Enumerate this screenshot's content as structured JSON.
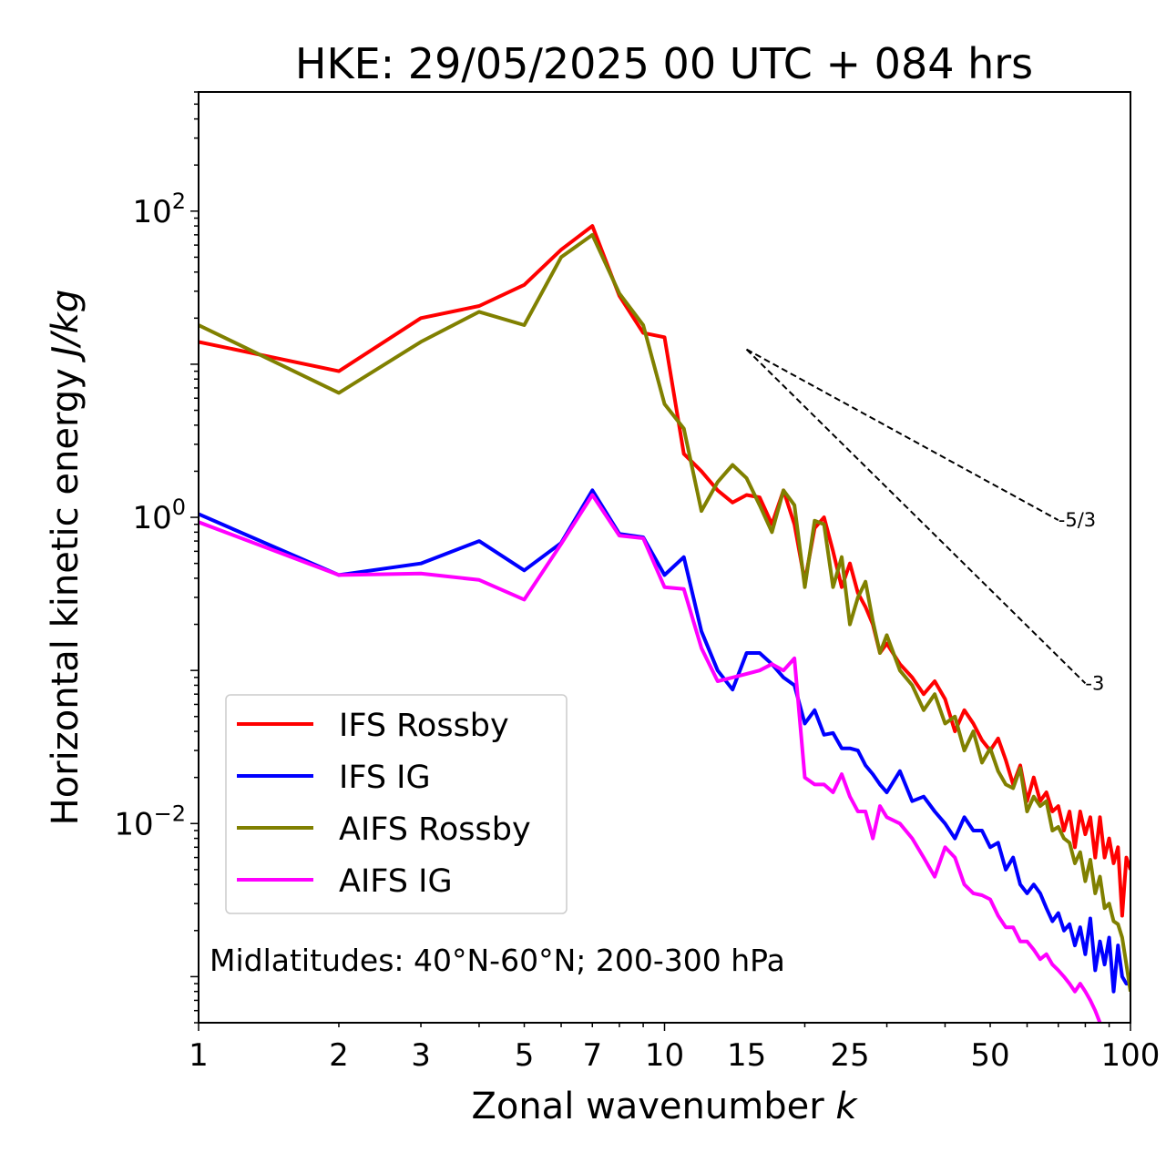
{
  "chart_data": {
    "type": "line",
    "title": "HKE: 29/05/2025 00 UTC + 084 hrs",
    "xlabel": "Zonal wavenumber",
    "xlabel_var": "k",
    "ylabel": "Horizontal kinetic energy",
    "ylabel_units": "J/kg",
    "xscale": "log",
    "yscale": "log",
    "xlim": [
      1,
      100
    ],
    "ylim": [
      0.0005,
      600
    ],
    "x_ticks": [
      1,
      2,
      3,
      5,
      7,
      10,
      15,
      25,
      50,
      100
    ],
    "y_ticks": [
      {
        "value": 0.01,
        "base": "10",
        "exp": "−2"
      },
      {
        "value": 1,
        "base": "10",
        "exp": "0"
      },
      {
        "value": 100,
        "base": "10",
        "exp": "2"
      }
    ],
    "grid": false,
    "legend_position": "lower-left",
    "annotation": "Midlatitudes: 40°N-60°N; 200-300 hPa",
    "reference_slopes": [
      {
        "label": "-5/3",
        "exponent": -1.6667,
        "x_start": 15,
        "y_start": 12.5,
        "x_end": 70
      },
      {
        "label": "-3",
        "exponent": -3,
        "x_start": 15,
        "y_start": 12.5,
        "x_end": 80
      }
    ],
    "series": [
      {
        "name": "IFS Rossby",
        "color": "#ff0000",
        "x": [
          1,
          2,
          3,
          4,
          5,
          6,
          7,
          8,
          9,
          10,
          11,
          12,
          13,
          14,
          15,
          16,
          17,
          18,
          19,
          20,
          21,
          22,
          23,
          24,
          25,
          26,
          27,
          28,
          29,
          30,
          32,
          34,
          36,
          38,
          40,
          42,
          44,
          46,
          48,
          50,
          52,
          54,
          56,
          58,
          60,
          62,
          64,
          66,
          68,
          70,
          72,
          74,
          76,
          78,
          80,
          82,
          84,
          86,
          88,
          90,
          92,
          94,
          96,
          98,
          100
        ],
        "values": [
          14,
          9,
          20,
          24,
          33,
          56,
          80,
          28,
          16,
          15,
          2.6,
          2.0,
          1.5,
          1.25,
          1.4,
          1.35,
          0.9,
          1.5,
          0.9,
          0.38,
          0.85,
          1.0,
          0.6,
          0.35,
          0.5,
          0.32,
          0.26,
          0.2,
          0.13,
          0.15,
          0.11,
          0.09,
          0.07,
          0.085,
          0.065,
          0.04,
          0.055,
          0.045,
          0.035,
          0.03,
          0.036,
          0.026,
          0.018,
          0.024,
          0.014,
          0.02,
          0.014,
          0.016,
          0.012,
          0.013,
          0.009,
          0.012,
          0.007,
          0.012,
          0.0085,
          0.011,
          0.006,
          0.011,
          0.006,
          0.008,
          0.0055,
          0.007,
          0.0025,
          0.006,
          0.005
        ]
      },
      {
        "name": "IFS IG",
        "color": "#0000ff",
        "x": [
          1,
          2,
          3,
          4,
          5,
          6,
          7,
          8,
          9,
          10,
          11,
          12,
          13,
          14,
          15,
          16,
          17,
          18,
          19,
          20,
          21,
          22,
          23,
          24,
          25,
          26,
          27,
          28,
          29,
          30,
          32,
          34,
          36,
          38,
          40,
          42,
          44,
          46,
          48,
          50,
          52,
          54,
          56,
          58,
          60,
          62,
          64,
          66,
          68,
          70,
          72,
          74,
          76,
          78,
          80,
          82,
          84,
          86,
          88,
          90,
          92,
          94,
          96,
          98,
          100
        ],
        "values": [
          1.05,
          0.42,
          0.5,
          0.7,
          0.45,
          0.68,
          1.5,
          0.78,
          0.74,
          0.42,
          0.55,
          0.18,
          0.1,
          0.075,
          0.13,
          0.13,
          0.11,
          0.09,
          0.08,
          0.045,
          0.055,
          0.038,
          0.039,
          0.031,
          0.031,
          0.03,
          0.024,
          0.021,
          0.018,
          0.016,
          0.022,
          0.014,
          0.015,
          0.012,
          0.01,
          0.008,
          0.011,
          0.009,
          0.009,
          0.007,
          0.0075,
          0.005,
          0.006,
          0.004,
          0.0035,
          0.004,
          0.0035,
          0.0028,
          0.0023,
          0.0026,
          0.002,
          0.0022,
          0.0016,
          0.0021,
          0.0014,
          0.0024,
          0.0011,
          0.0017,
          0.0012,
          0.0018,
          0.0008,
          0.0016,
          0.001,
          0.0009,
          0.0009
        ]
      },
      {
        "name": "AIFS Rossby",
        "color": "#808000",
        "x": [
          1,
          2,
          3,
          4,
          5,
          6,
          7,
          8,
          9,
          10,
          11,
          12,
          13,
          14,
          15,
          16,
          17,
          18,
          19,
          20,
          21,
          22,
          23,
          24,
          25,
          26,
          27,
          28,
          29,
          30,
          32,
          34,
          36,
          38,
          40,
          42,
          44,
          46,
          48,
          50,
          52,
          54,
          56,
          58,
          60,
          62,
          64,
          66,
          68,
          70,
          72,
          74,
          76,
          78,
          80,
          82,
          84,
          86,
          88,
          90,
          92,
          94,
          96,
          98,
          100
        ],
        "values": [
          18,
          6.5,
          14,
          22,
          18,
          50,
          70,
          29,
          18,
          5.5,
          3.8,
          1.1,
          1.7,
          2.2,
          1.8,
          1.2,
          0.8,
          1.5,
          1.2,
          0.35,
          0.95,
          0.9,
          0.35,
          0.55,
          0.2,
          0.3,
          0.38,
          0.21,
          0.13,
          0.17,
          0.1,
          0.08,
          0.055,
          0.07,
          0.045,
          0.05,
          0.03,
          0.04,
          0.025,
          0.031,
          0.022,
          0.018,
          0.017,
          0.023,
          0.012,
          0.015,
          0.013,
          0.014,
          0.009,
          0.0095,
          0.008,
          0.0075,
          0.0055,
          0.0065,
          0.0042,
          0.0058,
          0.0035,
          0.0045,
          0.0028,
          0.003,
          0.0023,
          0.0022,
          0.0018,
          0.0012,
          0.0008
        ]
      },
      {
        "name": "AIFS IG",
        "color": "#ff00ff",
        "x": [
          1,
          2,
          3,
          4,
          5,
          6,
          7,
          8,
          9,
          10,
          11,
          12,
          13,
          14,
          15,
          16,
          17,
          18,
          19,
          20,
          21,
          22,
          23,
          24,
          25,
          26,
          27,
          28,
          29,
          30,
          32,
          34,
          36,
          38,
          40,
          42,
          44,
          46,
          48,
          50,
          52,
          54,
          56,
          58,
          60,
          62,
          64,
          66,
          68,
          70,
          72,
          74,
          76,
          78,
          80,
          82,
          84,
          86
        ],
        "values": [
          0.93,
          0.42,
          0.43,
          0.39,
          0.29,
          0.67,
          1.4,
          0.76,
          0.73,
          0.35,
          0.34,
          0.14,
          0.085,
          0.09,
          0.095,
          0.1,
          0.11,
          0.1,
          0.12,
          0.02,
          0.018,
          0.018,
          0.016,
          0.021,
          0.015,
          0.012,
          0.012,
          0.008,
          0.013,
          0.011,
          0.01,
          0.008,
          0.006,
          0.0045,
          0.007,
          0.006,
          0.004,
          0.0035,
          0.0034,
          0.0032,
          0.0025,
          0.0021,
          0.0021,
          0.0017,
          0.0017,
          0.0015,
          0.0013,
          0.0014,
          0.0012,
          0.0011,
          0.001,
          0.0009,
          0.0008,
          0.0009,
          0.0008,
          0.0007,
          0.0006,
          0.0005
        ]
      }
    ]
  }
}
